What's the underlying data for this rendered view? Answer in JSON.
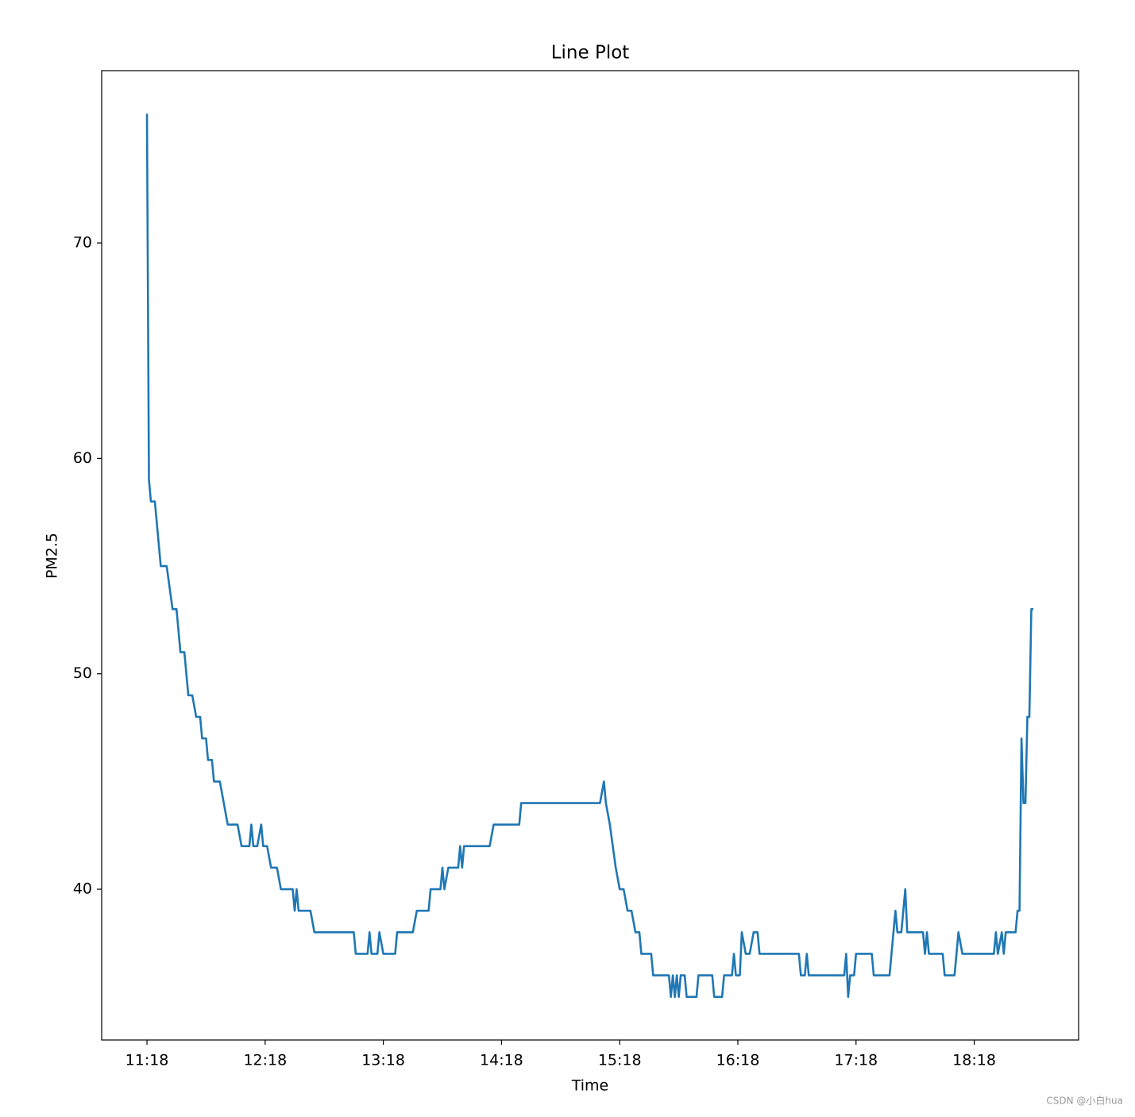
{
  "chart_data": {
    "type": "line",
    "title": "Line Plot",
    "x_label": "Time",
    "y_label": "PM2.5",
    "watermark": "CSDN @小白hua",
    "xlim": [
      "10:55",
      "19:11"
    ],
    "xticks": [
      "11:18",
      "12:18",
      "13:18",
      "14:18",
      "15:18",
      "16:18",
      "17:18",
      "18:18"
    ],
    "ylim": [
      33,
      78
    ],
    "yticks": [
      40,
      50,
      60,
      70
    ],
    "grid": false,
    "x": [
      "11:18",
      "11:19",
      "11:20",
      "11:22",
      "11:24",
      "11:25",
      "11:28",
      "11:31",
      "11:33",
      "11:35",
      "11:37",
      "11:38",
      "11:39",
      "11:41",
      "11:43",
      "11:45",
      "11:46",
      "11:48",
      "11:49",
      "11:51",
      "11:52",
      "11:55",
      "11:57",
      "11:59",
      "12:04",
      "12:06",
      "12:10",
      "12:11",
      "12:12",
      "12:14",
      "12:16",
      "12:17",
      "12:19",
      "12:21",
      "12:24",
      "12:26",
      "12:32",
      "12:33",
      "12:34",
      "12:35",
      "12:41",
      "12:43",
      "13:03",
      "13:04",
      "13:10",
      "13:11",
      "13:12",
      "13:15",
      "13:16",
      "13:18",
      "13:24",
      "13:25",
      "13:33",
      "13:35",
      "13:41",
      "13:42",
      "13:47",
      "13:48",
      "13:49",
      "13:51",
      "13:56",
      "13:57",
      "13:58",
      "13:59",
      "14:12",
      "14:14",
      "14:27",
      "14:28",
      "15:08",
      "15:10",
      "15:11",
      "15:13",
      "15:16",
      "15:18",
      "15:20",
      "15:22",
      "15:24",
      "15:26",
      "15:28",
      "15:29",
      "15:34",
      "15:35",
      "15:43",
      "15:44",
      "15:45",
      "15:46",
      "15:47",
      "15:48",
      "15:49",
      "15:51",
      "15:52",
      "15:57",
      "15:58",
      "16:05",
      "16:06",
      "16:10",
      "16:11",
      "16:15",
      "16:16",
      "16:17",
      "16:19",
      "16:20",
      "16:22",
      "16:24",
      "16:26",
      "16:28",
      "16:29",
      "16:49",
      "16:50",
      "16:52",
      "16:53",
      "16:54",
      "17:12",
      "17:13",
      "17:14",
      "17:15",
      "17:17",
      "17:18",
      "17:26",
      "17:27",
      "17:35",
      "17:38",
      "17:39",
      "17:41",
      "17:43",
      "17:44",
      "17:52",
      "17:53",
      "17:54",
      "17:55",
      "18:02",
      "18:03",
      "18:08",
      "18:10",
      "18:12",
      "18:28",
      "18:29",
      "18:30",
      "18:32",
      "18:33",
      "18:34",
      "18:39",
      "18:40",
      "18:41",
      "18:42",
      "18:43",
      "18:44",
      "18:45",
      "18:46",
      "18:47",
      "18:48"
    ],
    "series": [
      {
        "name": "PM2.5",
        "color": "#1f77b4",
        "values": [
          76,
          59,
          58,
          58,
          56,
          55,
          55,
          53,
          53,
          51,
          51,
          50,
          49,
          49,
          48,
          48,
          47,
          47,
          46,
          46,
          45,
          45,
          44,
          43,
          43,
          42,
          42,
          43,
          42,
          42,
          43,
          42,
          42,
          41,
          41,
          40,
          40,
          39,
          40,
          39,
          39,
          38,
          38,
          37,
          37,
          38,
          37,
          37,
          38,
          37,
          37,
          38,
          38,
          39,
          39,
          40,
          40,
          41,
          40,
          41,
          41,
          42,
          41,
          42,
          42,
          43,
          43,
          44,
          44,
          45,
          44,
          43,
          41,
          40,
          40,
          39,
          39,
          38,
          38,
          37,
          37,
          36,
          36,
          35,
          36,
          35,
          36,
          35,
          36,
          36,
          35,
          35,
          36,
          36,
          35,
          35,
          36,
          36,
          37,
          36,
          36,
          38,
          37,
          37,
          38,
          38,
          37,
          37,
          36,
          36,
          37,
          36,
          36,
          37,
          35,
          36,
          36,
          37,
          37,
          36,
          36,
          39,
          38,
          38,
          40,
          38,
          38,
          37,
          38,
          37,
          37,
          36,
          36,
          38,
          37,
          37,
          38,
          37,
          38,
          37,
          38,
          38,
          39,
          39,
          47,
          44,
          44,
          48,
          48,
          53,
          53
        ]
      }
    ]
  }
}
